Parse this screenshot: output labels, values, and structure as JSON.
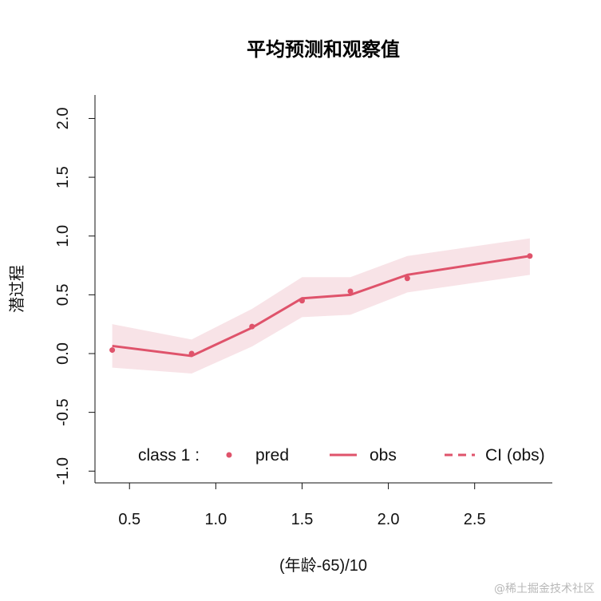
{
  "chart_data": {
    "type": "line",
    "title": "平均预测和观察值",
    "xlabel": "(年龄-65)/10",
    "ylabel": "潜过程",
    "xlim": [
      0.3,
      2.95
    ],
    "ylim": [
      -1.1,
      2.2
    ],
    "xticks": [
      0.5,
      1.0,
      1.5,
      2.0,
      2.5
    ],
    "xtick_labels": [
      "0.5",
      "1.0",
      "1.5",
      "2.0",
      "2.5"
    ],
    "yticks": [
      -1.0,
      -0.5,
      0.0,
      0.5,
      1.0,
      1.5,
      2.0
    ],
    "ytick_labels": [
      "-1.0",
      "-0.5",
      "0.0",
      "0.5",
      "1.0",
      "1.5",
      "2.0"
    ],
    "color": "#DF536B",
    "band_color": "#F8E3E7",
    "series": [
      {
        "name": "pred",
        "kind": "points",
        "x": [
          0.4,
          0.86,
          1.21,
          1.5,
          1.78,
          2.11,
          2.82
        ],
        "y": [
          0.03,
          0.0,
          0.23,
          0.45,
          0.53,
          0.64,
          0.83
        ]
      },
      {
        "name": "obs",
        "kind": "line",
        "x": [
          0.4,
          0.86,
          1.21,
          1.5,
          1.78,
          2.11,
          2.82
        ],
        "y": [
          0.065,
          -0.02,
          0.22,
          0.47,
          0.5,
          0.67,
          0.83
        ]
      },
      {
        "name": "CI (obs)",
        "kind": "band",
        "x": [
          0.4,
          0.86,
          1.21,
          1.5,
          1.78,
          2.11,
          2.82
        ],
        "lower": [
          -0.12,
          -0.17,
          0.06,
          0.31,
          0.33,
          0.52,
          0.67
        ],
        "upper": [
          0.25,
          0.12,
          0.38,
          0.65,
          0.65,
          0.83,
          0.98
        ]
      }
    ],
    "legend": {
      "position": "bottom",
      "prefix": "class 1 :",
      "entries": [
        "pred",
        "obs",
        "CI (obs)"
      ]
    }
  },
  "watermark": "@稀土掘金技术社区"
}
